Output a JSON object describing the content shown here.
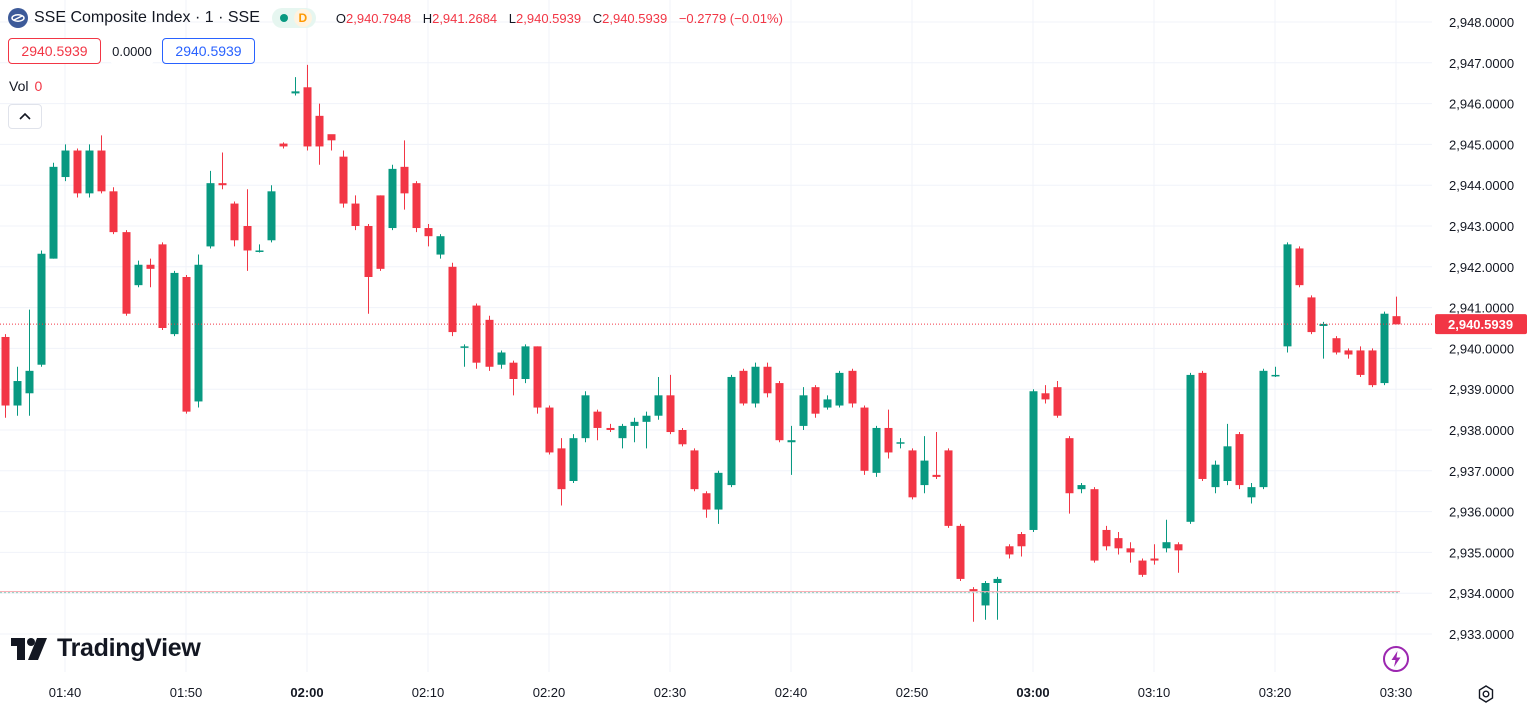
{
  "header": {
    "title": "SSE Composite Index · 1 · SSE",
    "status_letter": "D",
    "ohlc": {
      "o_label": "O",
      "o_value": "2,940.7948",
      "h_label": "H",
      "h_value": "2,941.2684",
      "l_label": "L",
      "l_value": "2,940.5939",
      "c_label": "C",
      "c_value": "2,940.5939",
      "change": "−0.2779 (−0.01%)"
    }
  },
  "trade": {
    "sell_price": "2940.5939",
    "spread": "0.0000",
    "buy_price": "2940.5939"
  },
  "volume": {
    "label": "Vol",
    "value": "0"
  },
  "branding": {
    "logo_text": "TradingView"
  },
  "icons": {
    "symbol": "sse-logo-icon",
    "collapse": "chevron-up-icon",
    "flash": "lightning-icon",
    "settings": "gear-icon"
  },
  "colors": {
    "up": "#089981",
    "down": "#f23645",
    "grid": "#f0f3fa",
    "axis_text": "#131722",
    "accent_blue": "#2962ff"
  },
  "chart_data": {
    "type": "candlestick",
    "title": "SSE Composite Index · 1 · SSE",
    "ylim": [
      2932.6,
      2948.2
    ],
    "y_ticks": [
      "2,933.0000",
      "2,934.0000",
      "2,935.0000",
      "2,936.0000",
      "2,937.0000",
      "2,938.0000",
      "2,939.0000",
      "2,940.0000",
      "2,941.0000",
      "2,942.0000",
      "2,943.0000",
      "2,944.0000",
      "2,945.0000",
      "2,946.0000",
      "2,947.0000",
      "2,948.0000"
    ],
    "x_ticks": [
      {
        "label": "01:40",
        "minute": 0,
        "bold": false
      },
      {
        "label": "01:50",
        "minute": 10,
        "bold": false
      },
      {
        "label": "02:00",
        "minute": 20,
        "bold": true
      },
      {
        "label": "02:10",
        "minute": 30,
        "bold": false
      },
      {
        "label": "02:20",
        "minute": 40,
        "bold": false
      },
      {
        "label": "02:30",
        "minute": 50,
        "bold": false
      },
      {
        "label": "02:40",
        "minute": 60,
        "bold": false
      },
      {
        "label": "02:50",
        "minute": 70,
        "bold": false
      },
      {
        "label": "03:00",
        "minute": 80,
        "bold": true
      },
      {
        "label": "03:10",
        "minute": 90,
        "bold": false
      },
      {
        "label": "03:20",
        "minute": 100,
        "bold": false
      },
      {
        "label": "03:30",
        "minute": 110,
        "bold": false
      }
    ],
    "last_price_label": "2,940.5939",
    "last_price": 2940.5939,
    "reference_price": 2934.04,
    "first_minute_offset": -5,
    "candles": [
      [
        2940.28,
        2938.6,
        2940.35,
        2938.3
      ],
      [
        2938.6,
        2939.2,
        2939.55,
        2938.35
      ],
      [
        2938.9,
        2939.45,
        2940.95,
        2938.35
      ],
      [
        2939.6,
        2942.32,
        2942.4,
        2939.55
      ],
      [
        2942.2,
        2944.45,
        2944.55,
        2942.2
      ],
      [
        2944.2,
        2944.85,
        2945.0,
        2944.1
      ],
      [
        2944.85,
        2943.8,
        2944.9,
        2943.7
      ],
      [
        2943.8,
        2944.85,
        2945.0,
        2943.7
      ],
      [
        2944.85,
        2943.85,
        2945.22,
        2943.8
      ],
      [
        2943.85,
        2942.85,
        2943.95,
        2942.8
      ],
      [
        2942.85,
        2940.85,
        2942.9,
        2940.8
      ],
      [
        2941.55,
        2942.05,
        2942.15,
        2941.5
      ],
      [
        2942.05,
        2941.95,
        2942.2,
        2941.5
      ],
      [
        2942.55,
        2940.5,
        2942.6,
        2940.45
      ],
      [
        2940.35,
        2941.85,
        2941.9,
        2940.3
      ],
      [
        2941.75,
        2938.45,
        2941.8,
        2938.4
      ],
      [
        2938.7,
        2942.05,
        2942.3,
        2938.55
      ],
      [
        2942.5,
        2944.05,
        2944.35,
        2942.45
      ],
      [
        2944.05,
        2944.0,
        2944.8,
        2943.9
      ],
      [
        2943.55,
        2942.65,
        2943.6,
        2942.5
      ],
      [
        2943.0,
        2942.4,
        2943.9,
        2941.9
      ],
      [
        2942.4,
        2942.4,
        2942.55,
        2942.35
      ],
      [
        2942.65,
        2943.85,
        2944.0,
        2942.6
      ],
      [
        2945.02,
        2944.95,
        2945.05,
        2944.9
      ],
      [
        2946.25,
        2946.3,
        2946.65,
        2946.2
      ],
      [
        2946.4,
        2944.95,
        2946.95,
        2944.85
      ],
      [
        2945.7,
        2944.95,
        2946.0,
        2944.5
      ],
      [
        2945.25,
        2945.1,
        2945.2,
        2944.85
      ],
      [
        2944.7,
        2943.55,
        2944.85,
        2943.45
      ],
      [
        2943.55,
        2943.0,
        2943.75,
        2942.9
      ],
      [
        2943.0,
        2941.75,
        2943.05,
        2940.85
      ],
      [
        2943.75,
        2941.95,
        2943.75,
        2941.9
      ],
      [
        2942.95,
        2944.4,
        2944.5,
        2942.9
      ],
      [
        2944.45,
        2943.8,
        2945.1,
        2943.4
      ],
      [
        2944.05,
        2942.95,
        2944.1,
        2942.85
      ],
      [
        2942.95,
        2942.75,
        2943.05,
        2942.5
      ],
      [
        2942.3,
        2942.75,
        2942.8,
        2942.2
      ],
      [
        2942.0,
        2940.4,
        2942.1,
        2940.3
      ],
      [
        2940.05,
        2940.05,
        2940.1,
        2939.55
      ],
      [
        2941.05,
        2939.65,
        2941.1,
        2939.5
      ],
      [
        2940.7,
        2939.55,
        2940.8,
        2939.45
      ],
      [
        2939.6,
        2939.9,
        2939.95,
        2939.5
      ],
      [
        2939.65,
        2939.25,
        2939.7,
        2938.85
      ],
      [
        2939.25,
        2940.05,
        2940.1,
        2939.15
      ],
      [
        2940.05,
        2938.55,
        2940.05,
        2938.4
      ],
      [
        2938.55,
        2937.45,
        2938.6,
        2937.4
      ],
      [
        2937.55,
        2936.55,
        2937.8,
        2936.15
      ],
      [
        2936.75,
        2937.8,
        2937.9,
        2936.7
      ],
      [
        2937.8,
        2938.85,
        2938.95,
        2937.7
      ],
      [
        2938.45,
        2938.05,
        2938.5,
        2937.75
      ],
      [
        2938.05,
        2938.0,
        2938.15,
        2937.95
      ],
      [
        2937.8,
        2938.1,
        2938.15,
        2937.55
      ],
      [
        2938.1,
        2938.2,
        2938.3,
        2937.7
      ],
      [
        2938.2,
        2938.35,
        2938.45,
        2937.55
      ],
      [
        2938.35,
        2938.85,
        2939.3,
        2938.25
      ],
      [
        2938.85,
        2937.95,
        2939.35,
        2937.9
      ],
      [
        2938.0,
        2937.65,
        2938.05,
        2937.6
      ],
      [
        2937.5,
        2936.55,
        2937.55,
        2936.5
      ],
      [
        2936.45,
        2936.05,
        2936.5,
        2935.85
      ],
      [
        2936.05,
        2936.95,
        2937.0,
        2935.7
      ],
      [
        2936.65,
        2939.3,
        2939.35,
        2936.6
      ],
      [
        2939.45,
        2938.65,
        2939.5,
        2938.6
      ],
      [
        2938.65,
        2939.55,
        2939.65,
        2938.55
      ],
      [
        2939.55,
        2938.9,
        2939.65,
        2938.8
      ],
      [
        2939.15,
        2937.75,
        2939.2,
        2937.7
      ],
      [
        2937.7,
        2937.75,
        2938.1,
        2936.9
      ],
      [
        2938.1,
        2938.85,
        2939.05,
        2938.0
      ],
      [
        2939.05,
        2938.4,
        2939.1,
        2938.3
      ],
      [
        2938.55,
        2938.75,
        2938.85,
        2938.5
      ],
      [
        2938.6,
        2939.4,
        2939.45,
        2938.55
      ],
      [
        2939.45,
        2938.65,
        2939.5,
        2938.55
      ],
      [
        2938.55,
        2937.0,
        2938.6,
        2936.9
      ],
      [
        2936.95,
        2938.05,
        2938.1,
        2936.85
      ],
      [
        2938.05,
        2937.45,
        2938.5,
        2937.3
      ],
      [
        2937.7,
        2937.7,
        2937.8,
        2937.55
      ],
      [
        2937.5,
        2936.35,
        2937.55,
        2936.3
      ],
      [
        2936.65,
        2937.25,
        2937.85,
        2936.45
      ],
      [
        2936.9,
        2936.85,
        2937.95,
        2936.8
      ],
      [
        2937.5,
        2935.65,
        2937.55,
        2935.6
      ],
      [
        2935.65,
        2934.35,
        2935.7,
        2934.3
      ],
      [
        2934.1,
        2934.05,
        2934.15,
        2933.3
      ],
      [
        2933.7,
        2934.25,
        2934.3,
        2933.35
      ],
      [
        2934.25,
        2934.35,
        2934.4,
        2933.35
      ],
      [
        2935.15,
        2934.95,
        2935.2,
        2934.85
      ],
      [
        2935.45,
        2935.15,
        2935.5,
        2934.9
      ],
      [
        2935.55,
        2938.95,
        2939.0,
        2935.5
      ],
      [
        2938.9,
        2938.75,
        2939.1,
        2938.65
      ],
      [
        2939.05,
        2938.35,
        2939.2,
        2938.3
      ],
      [
        2937.8,
        2936.45,
        2937.85,
        2935.95
      ],
      [
        2936.55,
        2936.65,
        2936.7,
        2936.45
      ],
      [
        2936.55,
        2934.8,
        2936.6,
        2934.75
      ],
      [
        2935.55,
        2935.15,
        2935.65,
        2935.05
      ],
      [
        2935.35,
        2935.1,
        2935.5,
        2934.95
      ],
      [
        2935.1,
        2935.0,
        2935.25,
        2934.75
      ],
      [
        2934.8,
        2934.45,
        2934.85,
        2934.4
      ],
      [
        2934.85,
        2934.8,
        2935.2,
        2934.7
      ],
      [
        2935.1,
        2935.25,
        2935.8,
        2935.0
      ],
      [
        2935.2,
        2935.05,
        2935.25,
        2934.5
      ],
      [
        2935.75,
        2939.35,
        2939.4,
        2935.7
      ],
      [
        2939.4,
        2936.8,
        2939.45,
        2936.75
      ],
      [
        2936.6,
        2937.15,
        2937.25,
        2936.45
      ],
      [
        2936.75,
        2937.6,
        2938.15,
        2936.65
      ],
      [
        2937.9,
        2936.65,
        2937.95,
        2936.55
      ],
      [
        2936.35,
        2936.6,
        2936.7,
        2936.2
      ],
      [
        2936.6,
        2939.45,
        2939.5,
        2936.55
      ],
      [
        2939.35,
        2939.35,
        2939.55,
        2939.3
      ],
      [
        2940.05,
        2942.55,
        2942.6,
        2939.9
      ],
      [
        2942.45,
        2941.55,
        2942.5,
        2941.5
      ],
      [
        2941.25,
        2940.4,
        2941.3,
        2940.35
      ],
      [
        2940.55,
        2940.6,
        2940.65,
        2939.75
      ],
      [
        2940.25,
        2939.9,
        2940.3,
        2939.85
      ],
      [
        2939.95,
        2939.85,
        2940.0,
        2939.75
      ],
      [
        2939.95,
        2939.35,
        2940.05,
        2939.3
      ],
      [
        2939.95,
        2939.1,
        2940.0,
        2939.05
      ],
      [
        2939.15,
        2940.85,
        2940.9,
        2939.1
      ],
      [
        2940.79,
        2940.59,
        2941.27,
        2940.59
      ]
    ]
  }
}
